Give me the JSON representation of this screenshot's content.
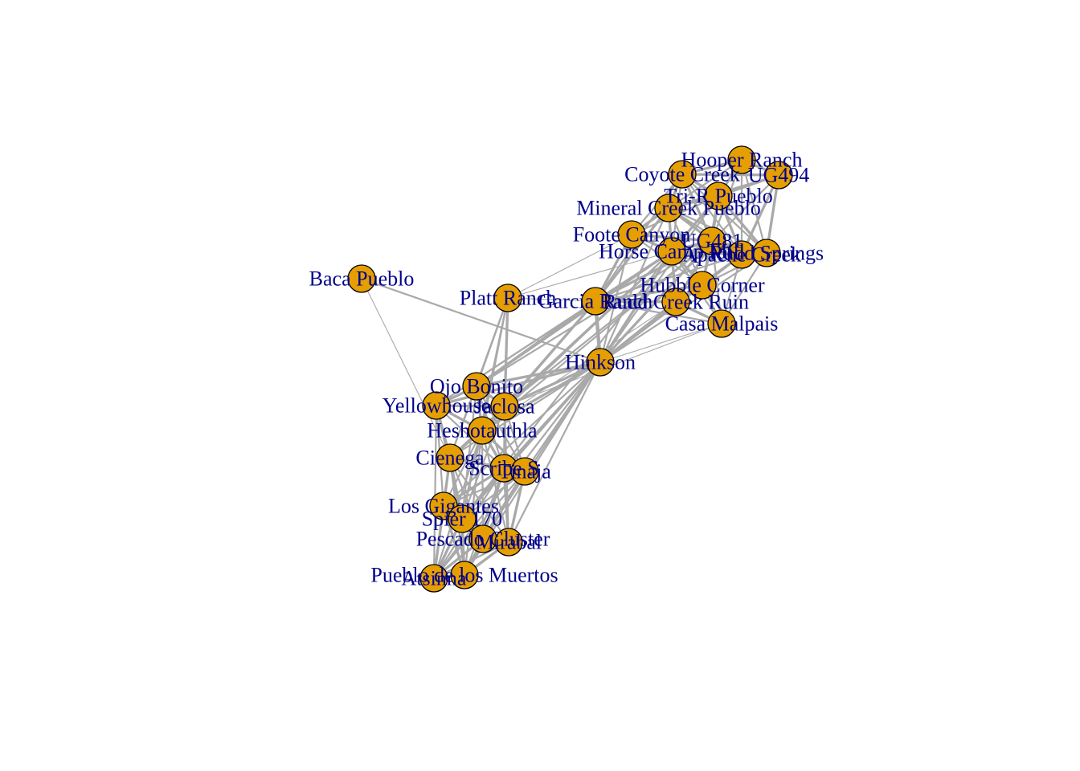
{
  "graph": {
    "title": "",
    "colors": {
      "node_fill": "#e69f00",
      "node_stroke": "#000000",
      "edge": "#a9a9a9",
      "label": "#00008b"
    },
    "nodes": [
      {
        "id": "hooper",
        "label": "Hooper Ranch"
      },
      {
        "id": "ug494",
        "label": "UG494"
      },
      {
        "id": "coyote",
        "label": "Coyote Creek"
      },
      {
        "id": "trir",
        "label": "Tri-R Pueblo"
      },
      {
        "id": "mineral",
        "label": "Mineral Creek Pueblo"
      },
      {
        "id": "foote",
        "label": "Foote Canyon"
      },
      {
        "id": "horse",
        "label": "Horse Camp Mill"
      },
      {
        "id": "ug481",
        "label": "UG481"
      },
      {
        "id": "apache",
        "label": "Apache Creek"
      },
      {
        "id": "parks",
        "label": "Rudd Springs"
      },
      {
        "id": "hubble",
        "label": "Hubble Corner"
      },
      {
        "id": "rudd",
        "label": "Rudd Creek Ruin"
      },
      {
        "id": "casa",
        "label": "Casa Malpais"
      },
      {
        "id": "garcia",
        "label": "Garcia Ranch"
      },
      {
        "id": "platt",
        "label": "Platt Ranch"
      },
      {
        "id": "baca",
        "label": "Baca Pueblo"
      },
      {
        "id": "hinkson",
        "label": "Hinkson"
      },
      {
        "id": "ojo",
        "label": "Ojo Bonito"
      },
      {
        "id": "yellow",
        "label": "Yellowhouse"
      },
      {
        "id": "jaclosa",
        "label": "Jaclosa"
      },
      {
        "id": "hesho",
        "label": "Heshotauthla"
      },
      {
        "id": "cienega",
        "label": "Cienega"
      },
      {
        "id": "scribe",
        "label": "Scribe S"
      },
      {
        "id": "tinaja",
        "label": "Tinaja"
      },
      {
        "id": "gigantes",
        "label": "Los Gigantes"
      },
      {
        "id": "spier",
        "label": "Spier 170"
      },
      {
        "id": "pescado",
        "label": "Pescado Cluster"
      },
      {
        "id": "mirabal",
        "label": "Mirabal"
      },
      {
        "id": "atsinna",
        "label": "Atsinna"
      },
      {
        "id": "pueblo",
        "label": "Pueblo de los Muertos"
      }
    ],
    "edges": [
      [
        "baca",
        "hinkson",
        2
      ],
      [
        "baca",
        "cienega",
        1
      ],
      [
        "platt",
        "jaclosa",
        3
      ],
      [
        "platt",
        "hesho",
        2
      ],
      [
        "platt",
        "ojo",
        2
      ],
      [
        "platt",
        "spier",
        2
      ],
      [
        "platt",
        "garcia",
        1
      ],
      [
        "platt",
        "cienega",
        2
      ],
      [
        "garcia",
        "hinkson",
        4
      ],
      [
        "garcia",
        "ojo",
        3
      ],
      [
        "garcia",
        "jaclosa",
        3
      ],
      [
        "garcia",
        "yellow",
        2
      ],
      [
        "garcia",
        "hesho",
        2
      ],
      [
        "garcia",
        "foote",
        3
      ],
      [
        "garcia",
        "mineral",
        3
      ],
      [
        "garcia",
        "horse",
        3
      ],
      [
        "garcia",
        "ug481",
        3
      ],
      [
        "garcia",
        "hubble",
        3
      ],
      [
        "garcia",
        "rudd",
        3
      ],
      [
        "garcia",
        "coyote",
        2
      ],
      [
        "garcia",
        "apache",
        2
      ],
      [
        "garcia",
        "casa",
        2
      ],
      [
        "hinkson",
        "ojo",
        3
      ],
      [
        "hinkson",
        "jaclosa",
        3
      ],
      [
        "hinkson",
        "yellow",
        3
      ],
      [
        "hinkson",
        "hesho",
        3
      ],
      [
        "hinkson",
        "cienega",
        2
      ],
      [
        "hinkson",
        "scribe",
        2
      ],
      [
        "hinkson",
        "tinaja",
        2
      ],
      [
        "hinkson",
        "gigantes",
        2
      ],
      [
        "hinkson",
        "spier",
        3
      ],
      [
        "hinkson",
        "pescado",
        2
      ],
      [
        "hinkson",
        "mirabal",
        2
      ],
      [
        "hinkson",
        "atsinna",
        2
      ],
      [
        "hinkson",
        "pueblo",
        2
      ],
      [
        "hinkson",
        "hubble",
        3
      ],
      [
        "hinkson",
        "rudd",
        3
      ],
      [
        "hinkson",
        "casa",
        1
      ],
      [
        "hinkson",
        "ug481",
        3
      ],
      [
        "hinkson",
        "horse",
        3
      ],
      [
        "hinkson",
        "mineral",
        2
      ],
      [
        "hinkson",
        "foote",
        2
      ],
      [
        "hinkson",
        "apache",
        2
      ],
      [
        "hinkson",
        "parks",
        2
      ],
      [
        "hinkson",
        "trir",
        2
      ],
      [
        "jaclosa",
        "casa",
        1
      ],
      [
        "hesho",
        "rudd",
        1
      ],
      [
        "foote",
        "mineral",
        3
      ],
      [
        "foote",
        "horse",
        3
      ],
      [
        "foote",
        "ug481",
        3
      ],
      [
        "foote",
        "coyote",
        2
      ],
      [
        "foote",
        "trir",
        2
      ],
      [
        "foote",
        "hubble",
        2
      ],
      [
        "mineral",
        "coyote",
        3
      ],
      [
        "mineral",
        "trir",
        3
      ],
      [
        "mineral",
        "hooper",
        2
      ],
      [
        "mineral",
        "ug494",
        2
      ],
      [
        "mineral",
        "horse",
        3
      ],
      [
        "mineral",
        "ug481",
        3
      ],
      [
        "mineral",
        "apache",
        2
      ],
      [
        "mineral",
        "parks",
        2
      ],
      [
        "mineral",
        "hubble",
        2
      ],
      [
        "coyote",
        "hooper",
        3
      ],
      [
        "coyote",
        "ug494",
        3
      ],
      [
        "coyote",
        "trir",
        3
      ],
      [
        "coyote",
        "ug481",
        3
      ],
      [
        "coyote",
        "apache",
        2
      ],
      [
        "coyote",
        "parks",
        2
      ],
      [
        "coyote",
        "horse",
        2
      ],
      [
        "hooper",
        "ug494",
        3
      ],
      [
        "hooper",
        "trir",
        3
      ],
      [
        "hooper",
        "ug481",
        2
      ],
      [
        "hooper",
        "apache",
        2
      ],
      [
        "hooper",
        "parks",
        2
      ],
      [
        "ug494",
        "trir",
        3
      ],
      [
        "ug494",
        "parks",
        3
      ],
      [
        "ug494",
        "apache",
        3
      ],
      [
        "ug494",
        "ug481",
        2
      ],
      [
        "trir",
        "ug481",
        3
      ],
      [
        "trir",
        "horse",
        3
      ],
      [
        "trir",
        "apache",
        3
      ],
      [
        "trir",
        "parks",
        3
      ],
      [
        "trir",
        "hubble",
        2
      ],
      [
        "horse",
        "ug481",
        4
      ],
      [
        "horse",
        "apache",
        3
      ],
      [
        "horse",
        "hubble",
        3
      ],
      [
        "horse",
        "rudd",
        3
      ],
      [
        "horse",
        "casa",
        2
      ],
      [
        "ug481",
        "apache",
        4
      ],
      [
        "ug481",
        "parks",
        3
      ],
      [
        "ug481",
        "hubble",
        3
      ],
      [
        "ug481",
        "rudd",
        3
      ],
      [
        "ug481",
        "casa",
        2
      ],
      [
        "apache",
        "parks",
        4
      ],
      [
        "apache",
        "hubble",
        3
      ],
      [
        "apache",
        "rudd",
        2
      ],
      [
        "apache",
        "casa",
        2
      ],
      [
        "parks",
        "hubble",
        2
      ],
      [
        "parks",
        "casa",
        2
      ],
      [
        "hubble",
        "rudd",
        3
      ],
      [
        "hubble",
        "casa",
        2
      ],
      [
        "rudd",
        "casa",
        3
      ],
      [
        "ojo",
        "jaclosa",
        3
      ],
      [
        "ojo",
        "yellow",
        3
      ],
      [
        "ojo",
        "hesho",
        3
      ],
      [
        "ojo",
        "cienega",
        2
      ],
      [
        "ojo",
        "scribe",
        2
      ],
      [
        "ojo",
        "tinaja",
        2
      ],
      [
        "ojo",
        "spier",
        2
      ],
      [
        "yellow",
        "jaclosa",
        3
      ],
      [
        "yellow",
        "hesho",
        3
      ],
      [
        "yellow",
        "cienega",
        3
      ],
      [
        "yellow",
        "scribe",
        2
      ],
      [
        "yellow",
        "gigantes",
        2
      ],
      [
        "yellow",
        "spier",
        2
      ],
      [
        "yellow",
        "atsinna",
        2
      ],
      [
        "jaclosa",
        "hesho",
        3
      ],
      [
        "jaclosa",
        "cienega",
        2
      ],
      [
        "jaclosa",
        "scribe",
        2
      ],
      [
        "jaclosa",
        "tinaja",
        2
      ],
      [
        "jaclosa",
        "spier",
        2
      ],
      [
        "jaclosa",
        "mirabal",
        2
      ],
      [
        "hesho",
        "cienega",
        3
      ],
      [
        "hesho",
        "scribe",
        3
      ],
      [
        "hesho",
        "tinaja",
        3
      ],
      [
        "hesho",
        "gigantes",
        2
      ],
      [
        "hesho",
        "spier",
        2
      ],
      [
        "hesho",
        "pescado",
        2
      ],
      [
        "hesho",
        "mirabal",
        2
      ],
      [
        "hesho",
        "atsinna",
        2
      ],
      [
        "hesho",
        "pueblo",
        2
      ],
      [
        "cienega",
        "scribe",
        3
      ],
      [
        "cienega",
        "tinaja",
        3
      ],
      [
        "cienega",
        "gigantes",
        3
      ],
      [
        "cienega",
        "spier",
        3
      ],
      [
        "cienega",
        "pescado",
        2
      ],
      [
        "cienega",
        "mirabal",
        2
      ],
      [
        "cienega",
        "atsinna",
        2
      ],
      [
        "cienega",
        "pueblo",
        2
      ],
      [
        "scribe",
        "tinaja",
        3
      ],
      [
        "scribe",
        "gigantes",
        3
      ],
      [
        "scribe",
        "spier",
        3
      ],
      [
        "scribe",
        "pescado",
        3
      ],
      [
        "scribe",
        "mirabal",
        3
      ],
      [
        "scribe",
        "atsinna",
        2
      ],
      [
        "scribe",
        "pueblo",
        2
      ],
      [
        "tinaja",
        "gigantes",
        2
      ],
      [
        "tinaja",
        "spier",
        2
      ],
      [
        "tinaja",
        "pescado",
        3
      ],
      [
        "tinaja",
        "mirabal",
        3
      ],
      [
        "tinaja",
        "atsinna",
        2
      ],
      [
        "tinaja",
        "pueblo",
        2
      ],
      [
        "gigantes",
        "spier",
        3
      ],
      [
        "gigantes",
        "pescado",
        3
      ],
      [
        "gigantes",
        "mirabal",
        2
      ],
      [
        "gigantes",
        "atsinna",
        3
      ],
      [
        "gigantes",
        "pueblo",
        3
      ],
      [
        "spier",
        "pescado",
        3
      ],
      [
        "spier",
        "mirabal",
        3
      ],
      [
        "spier",
        "atsinna",
        3
      ],
      [
        "spier",
        "pueblo",
        3
      ],
      [
        "pescado",
        "mirabal",
        3
      ],
      [
        "pescado",
        "atsinna",
        3
      ],
      [
        "pescado",
        "pueblo",
        3
      ],
      [
        "mirabal",
        "atsinna",
        2
      ],
      [
        "mirabal",
        "pueblo",
        3
      ],
      [
        "atsinna",
        "pueblo",
        3
      ],
      [
        "platt",
        "foote",
        1
      ],
      [
        "platt",
        "horse",
        1
      ],
      [
        "jaclosa",
        "horse",
        2
      ],
      [
        "ojo",
        "horse",
        2
      ],
      [
        "yellow",
        "horse",
        2
      ],
      [
        "hesho",
        "horse",
        2
      ],
      [
        "hesho",
        "ug481",
        2
      ],
      [
        "jaclosa",
        "ug481",
        2
      ],
      [
        "spier",
        "horse",
        2
      ],
      [
        "cienega",
        "horse",
        2
      ],
      [
        "ojo",
        "ug481",
        2
      ]
    ]
  }
}
